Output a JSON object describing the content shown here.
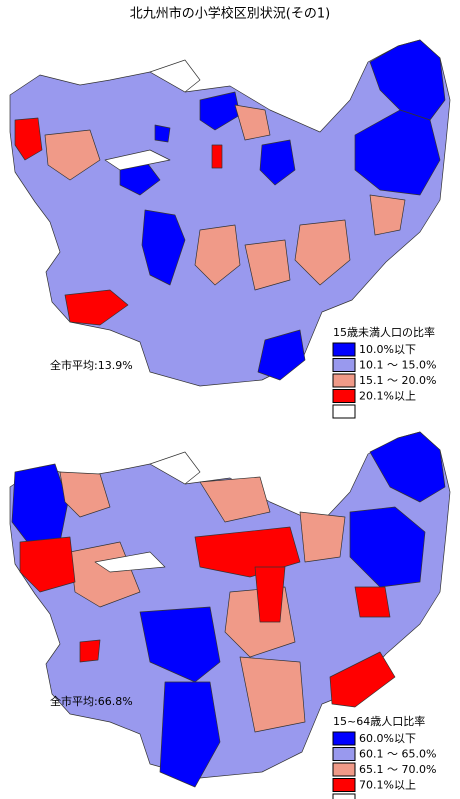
{
  "title": "北九州市の小学校区別状況(その1)",
  "maps": [
    {
      "average": "全市平均:13.9%",
      "legend": {
        "title": "15歳未満人口の比率",
        "items": [
          {
            "label": "10.0%以下",
            "color": "#0000ff"
          },
          {
            "label": "10.1 ～ 15.0%",
            "color": "#9999ee"
          },
          {
            "label": "15.1 ～ 20.0%",
            "color": "#f09a88"
          },
          {
            "label": "20.1%以上",
            "color": "#ff0000"
          },
          {
            "color": "#ffffff"
          }
        ]
      }
    },
    {
      "average": "全市平均:66.8%",
      "legend": {
        "title": "15~64歳人口比率",
        "items": [
          {
            "label": "60.0%以下",
            "color": "#0000ff"
          },
          {
            "label": "60.1 ～ 65.0%",
            "color": "#9999ee"
          },
          {
            "label": "65.1 ～ 70.0%",
            "color": "#f09a88"
          },
          {
            "label": "70.1%以上",
            "color": "#ff0000"
          },
          {
            "color": "#ffffff"
          }
        ]
      }
    }
  ]
}
